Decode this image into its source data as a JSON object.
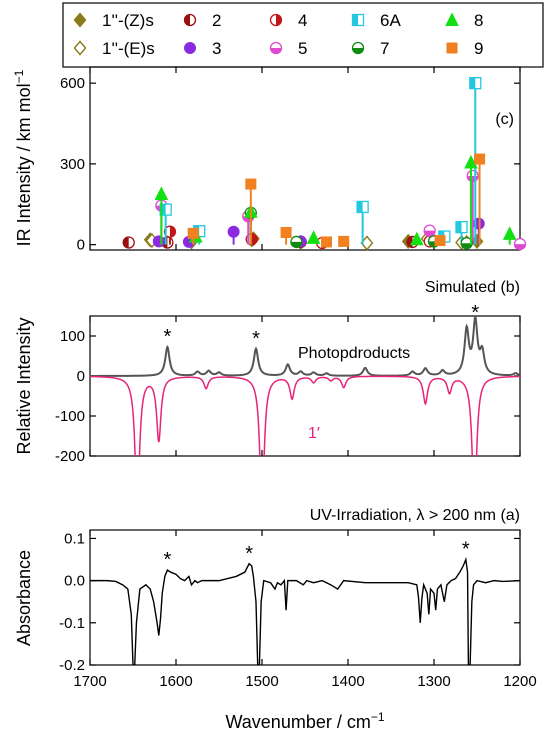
{
  "x_axis": {
    "label": "Wavenumber / cm",
    "label_superscript": "−1",
    "min": 1200,
    "max": 1700,
    "reversed": true,
    "ticks": [
      1700,
      1600,
      1500,
      1400,
      1300,
      1200
    ]
  },
  "chart_data": [
    {
      "type": "bar",
      "panel": "c",
      "panel_label": "(c)",
      "ylabel": "IR Intensity / km mol",
      "ylabel_superscript": "−1",
      "ylim": [
        -20,
        660
      ],
      "yticks": [
        0,
        300,
        600
      ],
      "legend": {
        "placement": "top",
        "entries": [
          {
            "id": "Zs",
            "label": "1''-(Z)s",
            "color": "#8c7a1a",
            "marker": "diamond"
          },
          {
            "id": "Es",
            "label": "1''-(E)s",
            "color": "#8c7a1a",
            "marker": "diamond-open"
          },
          {
            "id": "s2",
            "label": "2",
            "color": "#9a1010",
            "marker": "circle-half-left"
          },
          {
            "id": "s3",
            "label": "3",
            "color": "#8a2be2",
            "marker": "circle"
          },
          {
            "id": "s4",
            "label": "4",
            "color": "#c01818",
            "marker": "circle-half-right"
          },
          {
            "id": "s5",
            "label": "5",
            "color": "#e04ad0",
            "marker": "circle-half-bottom"
          },
          {
            "id": "s6A",
            "label": "6A",
            "color": "#22c8e0",
            "marker": "square-half"
          },
          {
            "id": "s7",
            "label": "7",
            "color": "#118a11",
            "marker": "circle-half-bottom"
          },
          {
            "id": "s8",
            "label": "8",
            "color": "#11e011",
            "marker": "triangle"
          },
          {
            "id": "s9",
            "label": "9",
            "color": "#f08020",
            "marker": "square"
          }
        ]
      },
      "series": [
        {
          "id": "Zs",
          "points": [
            [
              1630,
              18
            ],
            [
              1510,
              22
            ],
            [
              1455,
              8
            ],
            [
              1330,
              12
            ],
            [
              1262,
              8
            ],
            [
              1250,
              12
            ]
          ]
        },
        {
          "id": "Es",
          "points": [
            [
              1628,
              15
            ],
            [
              1582,
              10
            ],
            [
              1512,
              18
            ],
            [
              1378,
              6
            ],
            [
              1308,
              22
            ],
            [
              1268,
              8
            ]
          ]
        },
        {
          "id": "s2",
          "points": [
            [
              1655,
              8
            ],
            [
              1610,
              8
            ],
            [
              1455,
              10
            ],
            [
              1325,
              10
            ]
          ]
        },
        {
          "id": "s3",
          "points": [
            [
              1620,
              12
            ],
            [
              1585,
              10
            ],
            [
              1533,
              48
            ],
            [
              1455,
              12
            ],
            [
              1300,
              15
            ],
            [
              1248,
              78
            ]
          ]
        },
        {
          "id": "s4",
          "points": [
            [
              1607,
              48
            ],
            [
              1512,
              20
            ],
            [
              1430,
              6
            ],
            [
              1305,
              12
            ]
          ]
        },
        {
          "id": "s5",
          "points": [
            [
              1617,
              145
            ],
            [
              1516,
              105
            ],
            [
              1305,
              52
            ],
            [
              1255,
              255
            ],
            [
              1200,
              2
            ]
          ]
        },
        {
          "id": "s6A",
          "points": [
            [
              1612,
              130
            ],
            [
              1573,
              50
            ],
            [
              1383,
              140
            ],
            [
              1288,
              30
            ],
            [
              1268,
              65
            ],
            [
              1252,
              600
            ]
          ]
        },
        {
          "id": "s7",
          "points": [
            [
              1513,
              118
            ],
            [
              1460,
              10
            ],
            [
              1300,
              12
            ],
            [
              1262,
              5
            ]
          ]
        },
        {
          "id": "s8",
          "points": [
            [
              1617,
              188
            ],
            [
              1577,
              30
            ],
            [
              1513,
              122
            ],
            [
              1440,
              25
            ],
            [
              1320,
              20
            ],
            [
              1257,
              305
            ],
            [
              1212,
              40
            ]
          ]
        },
        {
          "id": "s9",
          "points": [
            [
              1580,
              42
            ],
            [
              1513,
              225
            ],
            [
              1472,
              45
            ],
            [
              1425,
              10
            ],
            [
              1405,
              12
            ],
            [
              1293,
              15
            ],
            [
              1247,
              318
            ]
          ]
        }
      ]
    },
    {
      "type": "line",
      "panel": "b",
      "panel_label": "Simulated (b)",
      "ylabel": "Relative Intensity",
      "ylim": [
        -200,
        150
      ],
      "yticks": [
        -200,
        -100,
        0,
        100
      ],
      "series": [
        {
          "name": "Photopdroducts",
          "color": "#555555",
          "width": 3.5,
          "sign": 1,
          "peaks": [
            [
              1610,
              72
            ],
            [
              1575,
              10
            ],
            [
              1562,
              12
            ],
            [
              1550,
              8
            ],
            [
              1507,
              68
            ],
            [
              1470,
              28
            ],
            [
              1455,
              10
            ],
            [
              1440,
              8
            ],
            [
              1425,
              6
            ],
            [
              1380,
              20
            ],
            [
              1325,
              10
            ],
            [
              1310,
              18
            ],
            [
              1290,
              12
            ],
            [
              1262,
              112
            ],
            [
              1252,
              132
            ],
            [
              1244,
              55
            ],
            [
              1205,
              6
            ]
          ]
        },
        {
          "name": "1′",
          "color": "#e8237a",
          "width": 3.0,
          "sign": -1,
          "peaks": [
            [
              1645,
              340
            ],
            [
              1620,
              160
            ],
            [
              1565,
              30
            ],
            [
              1500,
              340
            ],
            [
              1465,
              55
            ],
            [
              1440,
              15
            ],
            [
              1420,
              10
            ],
            [
              1405,
              28
            ],
            [
              1310,
              68
            ],
            [
              1282,
              40
            ],
            [
              1253,
              340
            ]
          ]
        }
      ],
      "labels": {
        "products": "Photopdroducts",
        "parent": "1′"
      },
      "stars": [
        {
          "x": 1610,
          "y": 72,
          "text": "*"
        },
        {
          "x": 1507,
          "y": 68,
          "text": "*"
        },
        {
          "x": 1252,
          "y": 132,
          "text": "*"
        }
      ]
    },
    {
      "type": "line",
      "panel": "a",
      "panel_label": "UV-Irradiation, λ > 200 nm (a)",
      "ylabel": "Absorbance",
      "ylim": [
        -0.2,
        0.12
      ],
      "yticks": [
        -0.2,
        -0.1,
        0.0,
        0.1
      ],
      "ytick_labels": [
        "-0.2",
        "-0.1",
        "0.0",
        "0.1"
      ],
      "color": "#000000",
      "points": [
        [
          1700,
          0.0
        ],
        [
          1680,
          0.0
        ],
        [
          1670,
          -0.002
        ],
        [
          1662,
          -0.01
        ],
        [
          1656,
          -0.02
        ],
        [
          1652,
          -0.08
        ],
        [
          1650,
          -0.2
        ],
        [
          1648,
          -0.2
        ],
        [
          1646,
          -0.1
        ],
        [
          1642,
          -0.02
        ],
        [
          1635,
          -0.01
        ],
        [
          1630,
          -0.02
        ],
        [
          1626,
          -0.05
        ],
        [
          1622,
          -0.1
        ],
        [
          1620,
          -0.13
        ],
        [
          1618,
          -0.09
        ],
        [
          1616,
          -0.03
        ],
        [
          1613,
          0.01
        ],
        [
          1610,
          0.025
        ],
        [
          1606,
          0.02
        ],
        [
          1600,
          0.015
        ],
        [
          1595,
          0.005
        ],
        [
          1590,
          0.0
        ],
        [
          1585,
          0.01
        ],
        [
          1582,
          -0.01
        ],
        [
          1578,
          0.0
        ],
        [
          1575,
          -0.005
        ],
        [
          1570,
          0.0
        ],
        [
          1550,
          0.0
        ],
        [
          1540,
          0.005
        ],
        [
          1530,
          0.01
        ],
        [
          1520,
          0.02
        ],
        [
          1515,
          0.04
        ],
        [
          1512,
          0.035
        ],
        [
          1510,
          0.01
        ],
        [
          1507,
          -0.05
        ],
        [
          1505,
          -0.2
        ],
        [
          1503,
          -0.2
        ],
        [
          1501,
          -0.05
        ],
        [
          1498,
          0.0
        ],
        [
          1490,
          -0.005
        ],
        [
          1485,
          -0.02
        ],
        [
          1482,
          -0.005
        ],
        [
          1478,
          -0.01
        ],
        [
          1474,
          0.0
        ],
        [
          1472,
          -0.07
        ],
        [
          1470,
          0.0
        ],
        [
          1460,
          0.0
        ],
        [
          1452,
          -0.01
        ],
        [
          1448,
          0.0
        ],
        [
          1440,
          -0.005
        ],
        [
          1430,
          0.0
        ],
        [
          1420,
          -0.01
        ],
        [
          1412,
          -0.02
        ],
        [
          1405,
          0.0
        ],
        [
          1380,
          -0.005
        ],
        [
          1340,
          -0.005
        ],
        [
          1330,
          -0.005
        ],
        [
          1320,
          -0.01
        ],
        [
          1318,
          -0.04
        ],
        [
          1316,
          -0.1
        ],
        [
          1314,
          -0.04
        ],
        [
          1312,
          -0.01
        ],
        [
          1308,
          -0.03
        ],
        [
          1306,
          -0.08
        ],
        [
          1304,
          -0.02
        ],
        [
          1300,
          -0.03
        ],
        [
          1298,
          -0.07
        ],
        [
          1296,
          -0.02
        ],
        [
          1292,
          -0.01
        ],
        [
          1288,
          -0.05
        ],
        [
          1285,
          -0.01
        ],
        [
          1280,
          0.0
        ],
        [
          1275,
          0.005
        ],
        [
          1270,
          0.02
        ],
        [
          1266,
          0.035
        ],
        [
          1263,
          0.05
        ],
        [
          1261,
          0.02
        ],
        [
          1260,
          -0.2
        ],
        [
          1258,
          -0.2
        ],
        [
          1256,
          -0.05
        ],
        [
          1254,
          -0.01
        ],
        [
          1250,
          0.0
        ],
        [
          1240,
          -0.005
        ],
        [
          1230,
          0.0
        ],
        [
          1220,
          -0.002
        ],
        [
          1200,
          0.0
        ]
      ],
      "stars": [
        {
          "x": 1610,
          "y": 0.025,
          "text": "*"
        },
        {
          "x": 1515,
          "y": 0.04,
          "text": "*"
        },
        {
          "x": 1263,
          "y": 0.05,
          "text": "*"
        }
      ]
    }
  ]
}
